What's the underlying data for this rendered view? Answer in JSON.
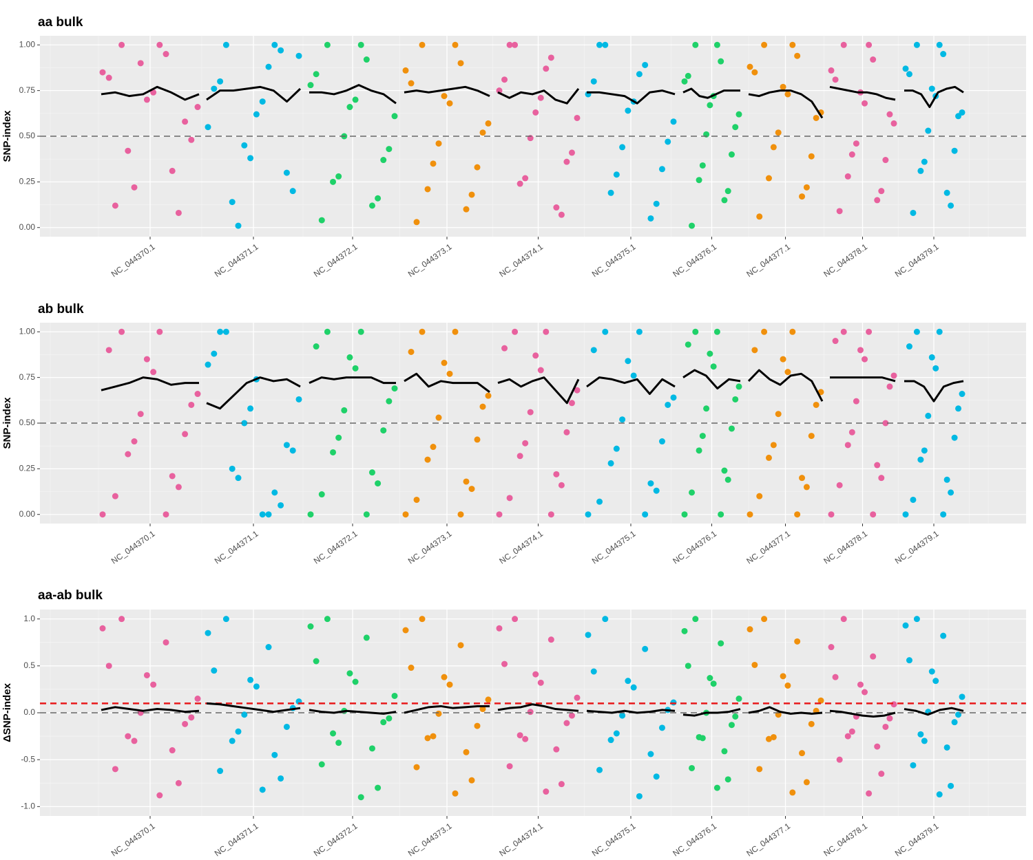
{
  "chart_data": [
    {
      "type": "scatter",
      "title": "aa bulk",
      "y_label": "SNP-index",
      "categories": [
        "NC_044370.1",
        "NC_044371.1",
        "NC_044372.1",
        "NC_044373.1",
        "NC_044374.1",
        "NC_044375.1",
        "NC_044376.1",
        "NC_044377.1",
        "NC_044378.1",
        "NC_044379.1"
      ],
      "colors": [
        "#e8619e",
        "#00b9e3",
        "#1fd169",
        "#f0900c",
        "#e8619e",
        "#00b9e3",
        "#1fd169",
        "#f0900c",
        "#e8619e",
        "#00b9e3"
      ],
      "points": [
        [
          1,
          0.95,
          0.82,
          0.74,
          0.66,
          0.9,
          0.58,
          0.42,
          0.31,
          0.12,
          1,
          0.85,
          0.7,
          0.48,
          0.22,
          0.08
        ],
        [
          1,
          0.88,
          0.76,
          0.62,
          0.94,
          0.45,
          0.3,
          0.14,
          1,
          0.8,
          0.69,
          0.55,
          0.38,
          0.2,
          0.01,
          0.97
        ],
        [
          1,
          0.92,
          0.84,
          0.7,
          0.61,
          0.5,
          0.37,
          0.25,
          0.12,
          0.04,
          1,
          0.78,
          0.66,
          0.43,
          0.28,
          0.16
        ],
        [
          1,
          0.9,
          0.79,
          0.68,
          0.57,
          0.46,
          0.33,
          0.21,
          0.1,
          0.03,
          1,
          0.86,
          0.72,
          0.52,
          0.35,
          0.18
        ],
        [
          1,
          0.93,
          0.81,
          0.71,
          0.6,
          0.49,
          0.36,
          0.24,
          0.11,
          1,
          0.87,
          0.75,
          0.63,
          0.41,
          0.27,
          0.07
        ],
        [
          1,
          0.89,
          0.8,
          0.69,
          0.58,
          0.44,
          0.32,
          0.19,
          0.05,
          1,
          0.84,
          0.73,
          0.64,
          0.47,
          0.29,
          0.13
        ],
        [
          1,
          0.91,
          0.83,
          0.72,
          0.62,
          0.51,
          0.4,
          0.26,
          0.15,
          0.01,
          1,
          0.8,
          0.67,
          0.55,
          0.34,
          0.2
        ],
        [
          1,
          0.94,
          0.85,
          0.73,
          0.63,
          0.52,
          0.39,
          0.27,
          0.17,
          0.06,
          1,
          0.88,
          0.77,
          0.6,
          0.44,
          0.22
        ],
        [
          1,
          0.92,
          0.81,
          0.68,
          0.57,
          0.46,
          0.37,
          0.28,
          0.15,
          0.09,
          1,
          0.86,
          0.74,
          0.62,
          0.4,
          0.2
        ],
        [
          1,
          0.95,
          0.84,
          0.72,
          0.63,
          0.53,
          0.42,
          0.31,
          0.19,
          0.08,
          1,
          0.87,
          0.76,
          0.61,
          0.36,
          0.12
        ]
      ],
      "trend": [
        [
          0.73,
          0.74,
          0.72,
          0.73,
          0.77,
          0.74,
          0.7,
          0.73
        ],
        [
          0.7,
          0.75,
          0.75,
          0.76,
          0.77,
          0.75,
          0.69,
          0.76
        ],
        [
          0.74,
          0.74,
          0.73,
          0.75,
          0.78,
          0.75,
          0.73,
          0.68
        ],
        [
          0.74,
          0.75,
          0.74,
          0.75,
          0.76,
          0.77,
          0.75,
          0.72
        ],
        [
          0.74,
          0.71,
          0.74,
          0.73,
          0.75,
          0.7,
          0.68,
          0.76
        ],
        [
          0.74,
          0.74,
          0.73,
          0.72,
          0.68,
          0.74,
          0.75,
          0.73
        ],
        [
          0.74,
          0.76,
          0.72,
          0.71,
          0.73,
          0.75,
          0.75,
          0.75
        ],
        [
          0.73,
          0.72,
          0.74,
          0.75,
          0.75,
          0.73,
          0.69,
          0.6
        ],
        [
          0.77,
          0.76,
          0.75,
          0.74,
          0.74,
          0.73,
          0.71,
          0.7
        ],
        [
          0.75,
          0.75,
          0.73,
          0.66,
          0.74,
          0.76,
          0.77,
          0.74
        ]
      ],
      "ylim": [
        -0.05,
        1.05
      ],
      "yticks": [
        {
          "value": 0,
          "label": "0.00"
        },
        {
          "value": 0.25,
          "label": "0.25"
        },
        {
          "value": 0.5,
          "label": "0.50"
        },
        {
          "value": 0.75,
          "label": "0.75"
        },
        {
          "value": 1,
          "label": "1.00"
        }
      ],
      "hlines": [
        {
          "value": 0.5,
          "color": "#666666"
        }
      ],
      "grid": true
    },
    {
      "type": "scatter",
      "title": "ab bulk",
      "y_label": "SNP-index",
      "categories": [
        "NC_044370.1",
        "NC_044371.1",
        "NC_044372.1",
        "NC_044373.1",
        "NC_044374.1",
        "NC_044375.1",
        "NC_044376.1",
        "NC_044377.1",
        "NC_044378.1",
        "NC_044379.1"
      ],
      "colors": [
        "#e8619e",
        "#00b9e3",
        "#1fd169",
        "#f0900c",
        "#e8619e",
        "#00b9e3",
        "#1fd169",
        "#f0900c",
        "#e8619e",
        "#00b9e3"
      ],
      "points": [
        [
          1,
          0,
          0.9,
          0.78,
          0.66,
          0.55,
          0.44,
          0.33,
          0.21,
          0.1,
          1,
          0,
          0.85,
          0.6,
          0.4,
          0.15
        ],
        [
          1,
          0,
          0.88,
          0.74,
          0.63,
          0.5,
          0.38,
          0.25,
          0.12,
          1,
          0,
          0.82,
          0.58,
          0.35,
          0.2,
          0.05
        ],
        [
          1,
          0,
          0.92,
          0.8,
          0.69,
          0.57,
          0.46,
          0.34,
          0.23,
          0.11,
          1,
          0,
          0.86,
          0.62,
          0.42,
          0.17
        ],
        [
          1,
          0,
          0.89,
          0.77,
          0.65,
          0.53,
          0.41,
          0.3,
          0.18,
          0.08,
          1,
          0,
          0.83,
          0.59,
          0.37,
          0.14
        ],
        [
          1,
          0,
          0.91,
          0.79,
          0.68,
          0.56,
          0.45,
          0.32,
          0.22,
          0.09,
          1,
          0,
          0.87,
          0.61,
          0.39,
          0.16
        ],
        [
          1,
          0,
          0.9,
          0.76,
          0.64,
          0.52,
          0.4,
          0.28,
          0.17,
          0.07,
          1,
          0,
          0.84,
          0.6,
          0.36,
          0.13
        ],
        [
          1,
          0,
          0.93,
          0.81,
          0.7,
          0.58,
          0.47,
          0.35,
          0.24,
          0.12,
          1,
          0,
          0.88,
          0.63,
          0.43,
          0.19
        ],
        [
          1,
          0,
          0.9,
          0.78,
          0.67,
          0.55,
          0.43,
          0.31,
          0.2,
          0.1,
          1,
          0,
          0.85,
          0.6,
          0.38,
          0.15
        ],
        [
          1,
          0,
          0.95,
          0.85,
          0.76,
          0.62,
          0.5,
          0.38,
          0.27,
          0.16,
          1,
          0,
          0.9,
          0.7,
          0.45,
          0.2
        ],
        [
          1,
          0,
          0.92,
          0.8,
          0.66,
          0.54,
          0.42,
          0.3,
          0.19,
          0.08,
          1,
          0,
          0.86,
          0.58,
          0.35,
          0.12
        ]
      ],
      "trend": [
        [
          0.68,
          0.7,
          0.72,
          0.75,
          0.74,
          0.71,
          0.72,
          0.72
        ],
        [
          0.61,
          0.58,
          0.65,
          0.72,
          0.75,
          0.73,
          0.74,
          0.7
        ],
        [
          0.72,
          0.75,
          0.74,
          0.75,
          0.75,
          0.75,
          0.72,
          0.72
        ],
        [
          0.73,
          0.77,
          0.7,
          0.73,
          0.72,
          0.72,
          0.72,
          0.67
        ],
        [
          0.72,
          0.74,
          0.7,
          0.73,
          0.75,
          0.68,
          0.61,
          0.74
        ],
        [
          0.7,
          0.75,
          0.74,
          0.72,
          0.74,
          0.66,
          0.74,
          0.7
        ],
        [
          0.75,
          0.79,
          0.76,
          0.69,
          0.74,
          0.73
        ],
        [
          0.73,
          0.79,
          0.74,
          0.71,
          0.76,
          0.77,
          0.73,
          0.62
        ],
        [
          0.75,
          0.75,
          0.75,
          0.75,
          0.75,
          0.73
        ],
        [
          0.73,
          0.73,
          0.7,
          0.62,
          0.7,
          0.72,
          0.73
        ]
      ],
      "ylim": [
        -0.05,
        1.05
      ],
      "yticks": [
        {
          "value": 0,
          "label": "0.00"
        },
        {
          "value": 0.25,
          "label": "0.25"
        },
        {
          "value": 0.5,
          "label": "0.50"
        },
        {
          "value": 0.75,
          "label": "0.75"
        },
        {
          "value": 1,
          "label": "1.00"
        }
      ],
      "hlines": [
        {
          "value": 0.5,
          "color": "#666666"
        }
      ],
      "grid": true
    },
    {
      "type": "scatter",
      "title": "aa-ab bulk",
      "y_label": "ΔSNP-index",
      "categories": [
        "NC_044370.1",
        "NC_044371.1",
        "NC_044372.1",
        "NC_044373.1",
        "NC_044374.1",
        "NC_044375.1",
        "NC_044376.1",
        "NC_044377.1",
        "NC_044378.1",
        "NC_044379.1"
      ],
      "colors": [
        "#e8619e",
        "#00b9e3",
        "#1fd169",
        "#f0900c",
        "#e8619e",
        "#00b9e3",
        "#1fd169",
        "#f0900c",
        "#e8619e",
        "#00b9e3"
      ],
      "points": [
        [
          1,
          0.75,
          0.5,
          0.3,
          0.15,
          0,
          -0.12,
          -0.25,
          -0.4,
          -0.6,
          -0.88,
          0.9,
          0.4,
          -0.05,
          -0.3,
          -0.75
        ],
        [
          1,
          0.7,
          0.45,
          0.28,
          0.12,
          -0.02,
          -0.15,
          -0.3,
          -0.45,
          -0.62,
          -0.82,
          0.85,
          0.35,
          0.05,
          -0.2,
          -0.7
        ],
        [
          1,
          0.8,
          0.55,
          0.33,
          0.18,
          0.02,
          -0.1,
          -0.22,
          -0.38,
          -0.55,
          -0.9,
          0.92,
          0.42,
          -0.06,
          -0.32,
          -0.8
        ],
        [
          1,
          0.72,
          0.48,
          0.3,
          0.14,
          -0.01,
          -0.14,
          -0.27,
          -0.42,
          -0.58,
          -0.86,
          0.88,
          0.38,
          0.04,
          -0.25,
          -0.72
        ],
        [
          1,
          0.78,
          0.52,
          0.32,
          0.16,
          0.01,
          -0.11,
          -0.24,
          -0.39,
          -0.57,
          -0.84,
          0.9,
          0.41,
          -0.03,
          -0.28,
          -0.76
        ],
        [
          1,
          0.68,
          0.44,
          0.27,
          0.11,
          -0.03,
          -0.16,
          -0.29,
          -0.44,
          -0.61,
          -0.89,
          0.83,
          0.34,
          0.03,
          -0.22,
          -0.68
        ],
        [
          1,
          0.74,
          0.5,
          0.31,
          0.15,
          0,
          -0.13,
          -0.26,
          -0.41,
          -0.59,
          -0.8,
          0.87,
          0.37,
          -0.04,
          -0.27,
          -0.71
        ],
        [
          1,
          0.76,
          0.51,
          0.29,
          0.13,
          -0.02,
          -0.12,
          -0.28,
          -0.43,
          -0.6,
          -0.85,
          0.89,
          0.39,
          0.02,
          -0.26,
          -0.74
        ],
        [
          1,
          0.6,
          0.38,
          0.22,
          0.09,
          -0.04,
          -0.15,
          -0.25,
          -0.36,
          -0.5,
          -0.86,
          0.7,
          0.3,
          -0.06,
          -0.2,
          -0.65
        ],
        [
          1,
          0.82,
          0.56,
          0.34,
          0.17,
          0.01,
          -0.1,
          -0.23,
          -0.37,
          -0.56,
          -0.87,
          0.93,
          0.44,
          -0.02,
          -0.3,
          -0.78
        ]
      ],
      "trend": [
        [
          0.03,
          0.06,
          0.04,
          0.02,
          0.04,
          0.03,
          0.01,
          0.02
        ],
        [
          0.1,
          0.09,
          0.07,
          0.05,
          0.03,
          0.01,
          0.03,
          0.05
        ],
        [
          0.03,
          0.01,
          0.0,
          0.02,
          0.01,
          0.0,
          -0.01,
          0.01
        ],
        [
          0.0,
          0.03,
          0.06,
          0.07,
          0.05,
          0.06,
          0.07,
          0.07
        ],
        [
          0.03,
          0.05,
          0.06,
          0.09,
          0.07,
          0.04,
          0.03,
          0.02
        ],
        [
          0.02,
          0.01,
          0.0,
          0.02,
          0.0,
          0.01,
          0.03,
          0.02
        ],
        [
          -0.02,
          -0.03,
          0.0,
          0.0,
          0.01,
          0.04
        ],
        [
          0.0,
          0.02,
          0.06,
          0.01,
          -0.01,
          0.0,
          -0.01,
          0.0
        ],
        [
          0.02,
          0.01,
          -0.01,
          -0.03,
          -0.04,
          -0.03,
          0.0
        ],
        [
          0.04,
          0.02,
          -0.02,
          0.03,
          0.05,
          0.02
        ]
      ],
      "ylim": [
        -1.1,
        1.1
      ],
      "yticks": [
        {
          "value": -1,
          "label": "-1.0"
        },
        -0.5,
        {
          "value": 0,
          "label": "0.0"
        },
        0.5,
        {
          "value": 1,
          "label": "1.0"
        }
      ],
      "hlines": [
        {
          "value": 0,
          "color": "#666666"
        },
        {
          "value": 0.1,
          "color": "#e8181a"
        }
      ],
      "grid": true
    }
  ]
}
